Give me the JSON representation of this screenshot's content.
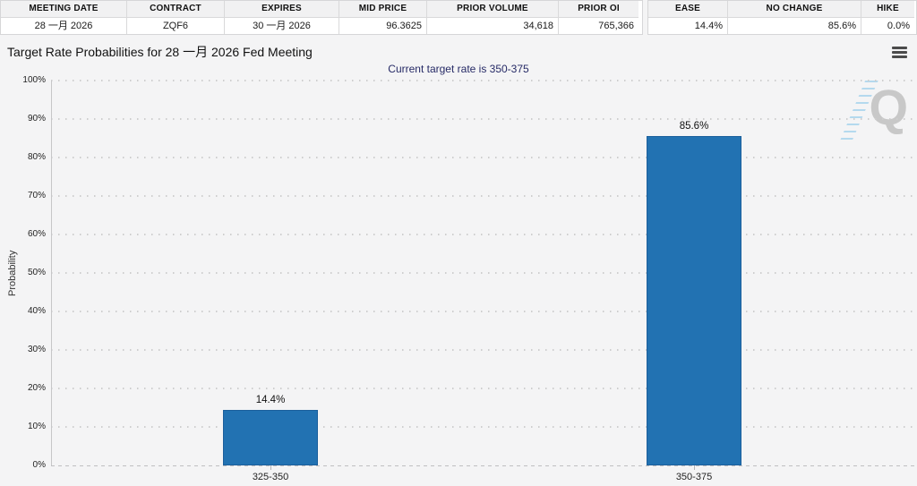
{
  "header_tables": {
    "left": {
      "columns": [
        {
          "label": "MEETING DATE",
          "value": "28 一月 2026",
          "align": "center"
        },
        {
          "label": "CONTRACT",
          "value": "ZQF6",
          "align": "center"
        },
        {
          "label": "EXPIRES",
          "value": "30 一月 2026",
          "align": "center"
        },
        {
          "label": "MID PRICE",
          "value": "96.3625",
          "align": "right"
        },
        {
          "label": "PRIOR VOLUME",
          "value": "34,618",
          "align": "right"
        },
        {
          "label": "PRIOR OI",
          "value": "765,366",
          "align": "right"
        }
      ]
    },
    "right": {
      "columns": [
        {
          "label": "EASE",
          "value": "14.4%",
          "align": "right"
        },
        {
          "label": "NO CHANGE",
          "value": "85.6%",
          "align": "right"
        },
        {
          "label": "HIKE",
          "value": "0.0%",
          "align": "right"
        }
      ]
    }
  },
  "chart": {
    "title": "Target Rate Probabilities for 28 一月 2026 Fed Meeting",
    "subtitle": "Current target rate is 350-375",
    "watermark_letter": "Q"
  },
  "chart_data": {
    "type": "bar",
    "title": "Target Rate Probabilities for 28 一月 2026 Fed Meeting",
    "subtitle": "Current target rate is 350-375",
    "categories": [
      "325-350",
      "350-375"
    ],
    "values": [
      14.4,
      85.6
    ],
    "value_labels": [
      "14.4%",
      "85.6%"
    ],
    "xlabel": "",
    "ylabel": "Probability",
    "ylim": [
      0,
      100
    ],
    "yticks": [
      "0%",
      "10%",
      "20%",
      "30%",
      "40%",
      "50%",
      "60%",
      "70%",
      "80%",
      "90%",
      "100%"
    ],
    "grid": "horizontal-dotted",
    "legend": "none",
    "bar_color": "#2272b2"
  },
  "colors": {
    "page_bg": "#f4f4f5",
    "table_header_bg": "#f1f1f2",
    "table_row_bg": "#ffffff",
    "table_border": "#d8d8d8",
    "bar": "#2272b2",
    "bar_border": "#1b5f9c",
    "subtitle_text": "#262a66",
    "axis_line": "#c6c6c8",
    "watermark_gray": "#c8c8c8",
    "watermark_blue": "#80c3e9"
  }
}
